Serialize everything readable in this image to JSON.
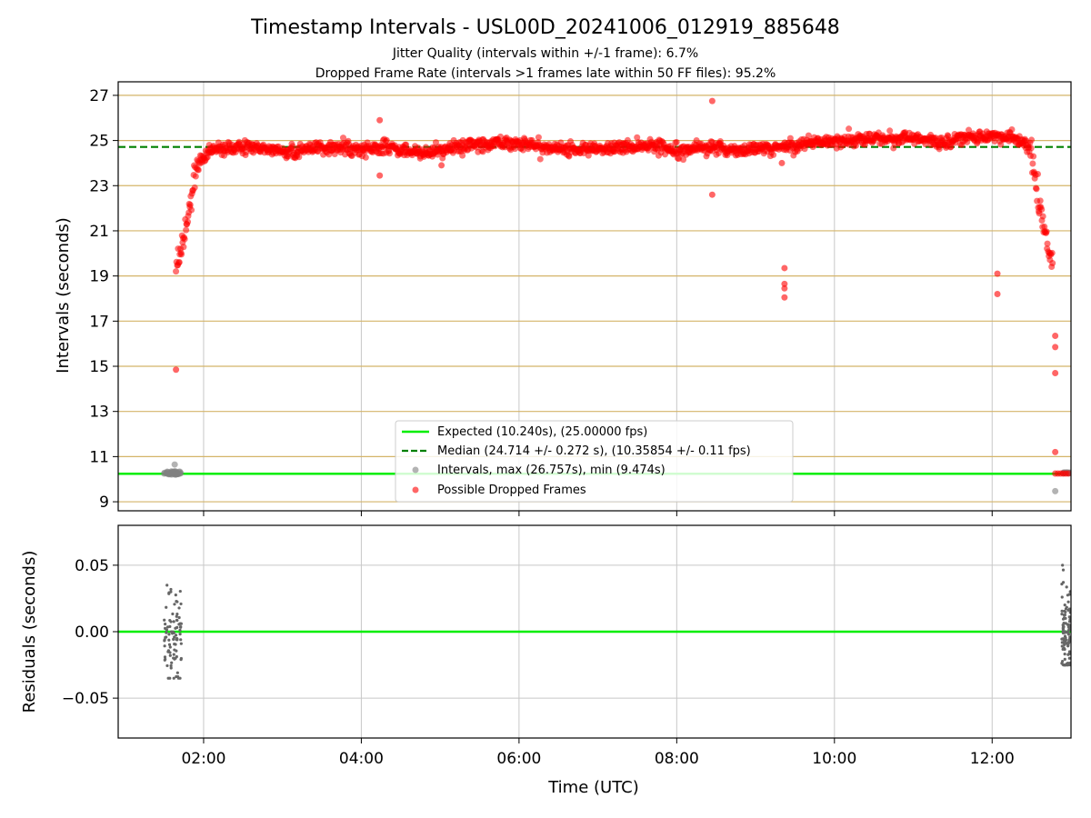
{
  "figure": {
    "title": "Timestamp Intervals - USL00D_20241006_012919_885648",
    "subtitle1": "Jitter Quality (intervals within +/-1 frame): 6.7%",
    "subtitle2": "Dropped Frame Rate (intervals >1 frames late within 50 FF files): 95.2%"
  },
  "colors": {
    "expected": "#00ee00",
    "median": "#008000",
    "dropped": "#ff0000",
    "intervals": "#808080",
    "hgrid_top": "#d4b469",
    "grid": "#c8c8c8",
    "residual": "#666666"
  },
  "chart_data": [
    {
      "type": "scatter",
      "panel": "top",
      "ylabel": "Intervals (seconds)",
      "xlim": [
        "00:55",
        "13:00"
      ],
      "ylim": [
        8.6,
        27.6
      ],
      "yticks": [
        9,
        11,
        13,
        15,
        17,
        19,
        21,
        23,
        25,
        27
      ],
      "ytick_labels": [
        "9",
        "11",
        "13",
        "15",
        "17",
        "19",
        "21",
        "23",
        "25",
        "27"
      ],
      "hgrid": true,
      "legend_position": "lower center",
      "expected_value": 10.24,
      "median_value": 24.714,
      "legend": [
        "Expected (10.240s), (25.00000 fps)",
        "Median (24.714 +/- 0.272 s), (10.35854 +/- 0.11 fps)",
        "Intervals, max (26.757s), min (9.474s)",
        "Possible Dropped Frames"
      ],
      "series": [
        {
          "name": "Possible Dropped Frames",
          "kind": "curve_band",
          "points": [
            [
              "01:39",
              19.0
            ],
            [
              "01:41",
              19.8
            ],
            [
              "01:44",
              20.5
            ],
            [
              "01:47",
              21.2
            ],
            [
              "01:50",
              22.3
            ],
            [
              "01:53",
              23.6
            ],
            [
              "01:56",
              24.0
            ],
            [
              "02:00",
              24.2
            ],
            [
              "02:05",
              24.5
            ],
            [
              "02:10",
              24.6
            ],
            [
              "02:20",
              24.65
            ],
            [
              "02:40",
              24.7
            ],
            [
              "03:00",
              24.5
            ],
            [
              "03:20",
              24.6
            ],
            [
              "03:40",
              24.7
            ],
            [
              "04:00",
              24.6
            ],
            [
              "04:20",
              24.7
            ],
            [
              "04:40",
              24.5
            ],
            [
              "05:00",
              24.5
            ],
            [
              "05:20",
              24.8
            ],
            [
              "05:40",
              24.9
            ],
            [
              "06:00",
              24.9
            ],
            [
              "06:20",
              24.7
            ],
            [
              "06:40",
              24.6
            ],
            [
              "07:00",
              24.6
            ],
            [
              "07:20",
              24.7
            ],
            [
              "07:40",
              24.8
            ],
            [
              "08:00",
              24.6
            ],
            [
              "08:20",
              24.7
            ],
            [
              "08:40",
              24.6
            ],
            [
              "09:00",
              24.6
            ],
            [
              "09:20",
              24.7
            ],
            [
              "09:40",
              24.9
            ],
            [
              "10:00",
              25.0
            ],
            [
              "10:20",
              25.05
            ],
            [
              "10:40",
              25.1
            ],
            [
              "11:00",
              25.1
            ],
            [
              "11:20",
              24.9
            ],
            [
              "11:40",
              25.15
            ],
            [
              "12:00",
              25.2
            ],
            [
              "12:15",
              25.1
            ],
            [
              "12:25",
              24.9
            ],
            [
              "12:30",
              24.5
            ],
            [
              "12:34",
              22.5
            ],
            [
              "12:38",
              21.5
            ],
            [
              "12:42",
              20.5
            ],
            [
              "12:46",
              19.5
            ]
          ],
          "outliers": [
            [
              "01:39",
              14.85
            ],
            [
              "04:14",
              25.9
            ],
            [
              "04:14",
              23.45
            ],
            [
              "05:01",
              23.9
            ],
            [
              "08:27",
              26.75
            ],
            [
              "08:27",
              22.6
            ],
            [
              "09:22",
              19.35
            ],
            [
              "09:22",
              18.65
            ],
            [
              "09:22",
              18.45
            ],
            [
              "09:22",
              18.05
            ],
            [
              "09:20",
              24.0
            ],
            [
              "12:04",
              19.1
            ],
            [
              "12:04",
              18.2
            ],
            [
              "12:48",
              16.35
            ],
            [
              "12:48",
              15.85
            ],
            [
              "12:48",
              14.7
            ],
            [
              "12:48",
              11.2
            ],
            [
              "12:48",
              10.25
            ],
            [
              "12:50",
              10.25
            ],
            [
              "12:52",
              10.25
            ],
            [
              "12:54",
              10.25
            ],
            [
              "12:56",
              10.25
            ],
            [
              "12:58",
              10.25
            ]
          ]
        },
        {
          "name": "Intervals, max (26.757s), min (9.474s)",
          "kind": "cluster",
          "points": [
            [
              "01:30",
              10.25
            ],
            [
              "01:32",
              10.28
            ],
            [
              "01:34",
              10.22
            ],
            [
              "01:36",
              10.26
            ],
            [
              "01:38",
              10.3
            ],
            [
              "01:40",
              10.24
            ],
            [
              "01:42",
              10.25
            ],
            [
              "01:38",
              10.65
            ],
            [
              "12:58",
              10.27
            ],
            [
              "12:48",
              9.47
            ]
          ]
        }
      ]
    },
    {
      "type": "scatter",
      "panel": "bottom",
      "xlabel": "Time (UTC)",
      "ylabel": "Residuals (seconds)",
      "xlim": [
        "00:55",
        "13:00"
      ],
      "ylim": [
        -0.08,
        0.08
      ],
      "yticks": [
        -0.05,
        0.0,
        0.05
      ],
      "ytick_labels": [
        "−0.05",
        "0.00",
        "0.05"
      ],
      "xticks": [
        "02:00",
        "04:00",
        "06:00",
        "08:00",
        "10:00",
        "12:00"
      ],
      "xtick_labels": [
        "02:00",
        "04:00",
        "06:00",
        "08:00",
        "10:00",
        "12:00"
      ],
      "grid": true,
      "zero_line": 0.0,
      "series": [
        {
          "name": "Residuals",
          "clusters": [
            {
              "x_range": [
                "01:30",
                "01:43"
              ],
              "y_range": [
                -0.035,
                0.053
              ],
              "count": 90
            },
            {
              "x_range": [
                "12:53",
                "13:00"
              ],
              "y_range": [
                -0.025,
                0.05
              ],
              "count": 120
            }
          ]
        }
      ]
    }
  ]
}
